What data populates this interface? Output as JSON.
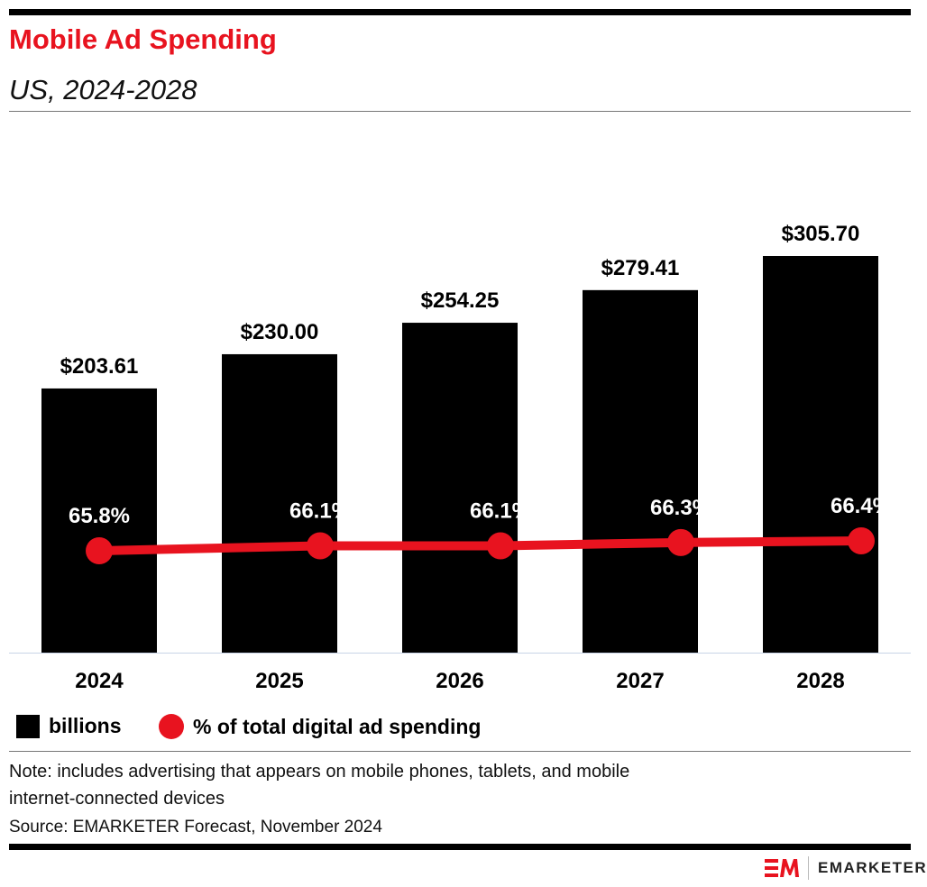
{
  "title": "Mobile Ad Spending",
  "subtitle": "US, 2024-2028",
  "chart_data": {
    "type": "bar",
    "categories": [
      "2024",
      "2025",
      "2026",
      "2027",
      "2028"
    ],
    "series": [
      {
        "name": "billions",
        "type": "bar",
        "values": [
          203.61,
          230.0,
          254.25,
          279.41,
          305.7
        ],
        "labels": [
          "$203.61",
          "$230.00",
          "$254.25",
          "$279.41",
          "$305.70"
        ],
        "color": "#000000"
      },
      {
        "name": "% of total digital ad spending",
        "type": "line",
        "values": [
          65.8,
          66.1,
          66.1,
          66.3,
          66.4
        ],
        "labels": [
          "65.8%",
          "66.1%",
          "66.1%",
          "66.3%",
          "66.4%"
        ],
        "color": "#e8131f"
      }
    ],
    "ylim": [
      0,
      305.7
    ],
    "grid": false,
    "legend": "bottom-left"
  },
  "legend": {
    "bars": "billions",
    "line": "% of total digital ad spending"
  },
  "note": "Note: includes advertising that appears on mobile phones, tablets, and mobile internet-connected devices",
  "note_line1": "Note: includes advertising that appears on mobile phones, tablets, and mobile",
  "note_line2": "internet-connected devices",
  "source": "Source: EMARKETER Forecast, November 2024",
  "brand": "EMARKETER",
  "colors": {
    "accent": "#e8131f",
    "bar": "#000000"
  }
}
